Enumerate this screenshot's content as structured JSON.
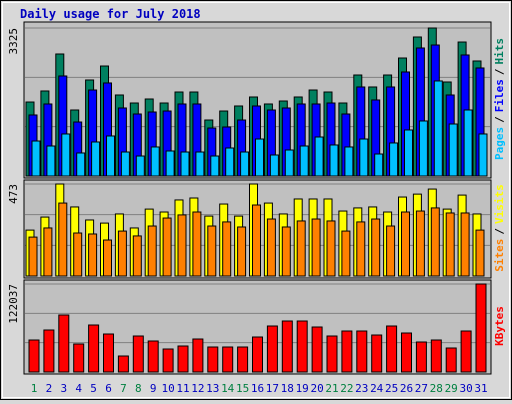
{
  "chart_data": [
    {
      "type": "bar",
      "title": "Daily usage for July 2018",
      "ylim": [
        0,
        3325
      ],
      "yticks": [
        3325
      ],
      "legend_separator": "/",
      "series": [
        {
          "name": "Hits",
          "color": "#008060",
          "values": [
            1662,
            1910,
            2741,
            1483,
            2157,
            2471,
            1820,
            1640,
            1730,
            1640,
            1887,
            1887,
            1258,
            1460,
            1573,
            1775,
            1618,
            1685,
            1775,
            1932,
            1887,
            1640,
            2269,
            2000,
            2269,
            2651,
            3123,
            3325,
            2112,
            3010,
            2584
          ]
        },
        {
          "name": "Files",
          "color": "#0000ff",
          "values": [
            1371,
            1618,
            2247,
            1213,
            1932,
            2090,
            1528,
            1393,
            1438,
            1460,
            1618,
            1618,
            1078,
            1101,
            1258,
            1573,
            1483,
            1528,
            1618,
            1618,
            1640,
            1393,
            2000,
            1708,
            2000,
            2337,
            2876,
            2943,
            1820,
            2719,
            2427
          ]
        },
        {
          "name": "Pages",
          "color": "#00c0ff",
          "values": [
            786,
            674,
            944,
            517,
            764,
            899,
            539,
            449,
            652,
            562,
            539,
            539,
            449,
            629,
            539,
            831,
            472,
            584,
            674,
            876,
            697,
            652,
            831,
            494,
            742,
            1034,
            1236,
            2135,
            1168,
            1483,
            944
          ]
        }
      ]
    },
    {
      "type": "bar",
      "ylim": [
        0,
        473
      ],
      "yticks": [
        473
      ],
      "legend_separator": "/",
      "series": [
        {
          "name": "Visits",
          "color": "#ffff00",
          "values": [
            236,
            303,
            473,
            355,
            288,
            272,
            319,
            247,
            344,
            329,
            391,
            401,
            308,
            370,
            308,
            473,
            375,
            319,
            396,
            396,
            396,
            334,
            350,
            355,
            329,
            406,
            421,
            447,
            344,
            416,
            319
          ]
        },
        {
          "name": "Sites",
          "color": "#ff8000",
          "values": [
            200,
            247,
            375,
            221,
            216,
            185,
            231,
            206,
            257,
            298,
            314,
            329,
            257,
            278,
            252,
            365,
            293,
            252,
            283,
            293,
            283,
            231,
            278,
            293,
            257,
            329,
            334,
            350,
            324,
            324,
            236
          ]
        }
      ]
    },
    {
      "type": "bar",
      "ylim": [
        0,
        122037
      ],
      "yticks": [
        122037
      ],
      "categories": [
        "1",
        "2",
        "3",
        "4",
        "5",
        "6",
        "7",
        "8",
        "9",
        "10",
        "11",
        "12",
        "13",
        "14",
        "15",
        "16",
        "17",
        "18",
        "19",
        "20",
        "21",
        "22",
        "23",
        "24",
        "25",
        "26",
        "27",
        "28",
        "29",
        "30",
        "31"
      ],
      "category_colors": [
        "#008040",
        "#0000c0",
        "#0000c0",
        "#0000c0",
        "#0000c0",
        "#0000c0",
        "#008040",
        "#008040",
        "#0000c0",
        "#0000c0",
        "#0000c0",
        "#0000c0",
        "#0000c0",
        "#008040",
        "#008040",
        "#0000c0",
        "#0000c0",
        "#0000c0",
        "#0000c0",
        "#0000c0",
        "#008040",
        "#008040",
        "#0000c0",
        "#0000c0",
        "#0000c0",
        "#0000c0",
        "#0000c0",
        "#008040",
        "#008040",
        "#0000c0",
        "#0000c0"
      ],
      "series": [
        {
          "name": "KBytes",
          "color": "#ff0000",
          "values": [
            44378,
            58246,
            79048,
            38830,
            65180,
            52698,
            22189,
            49925,
            42991,
            31896,
            36057,
            45764,
            34670,
            34670,
            34670,
            48538,
            63793,
            70727,
            70727,
            62406,
            49925,
            56859,
            56859,
            51312,
            63793,
            54085,
            41604,
            44378,
            33283,
            56859,
            122037
          ]
        }
      ]
    }
  ]
}
